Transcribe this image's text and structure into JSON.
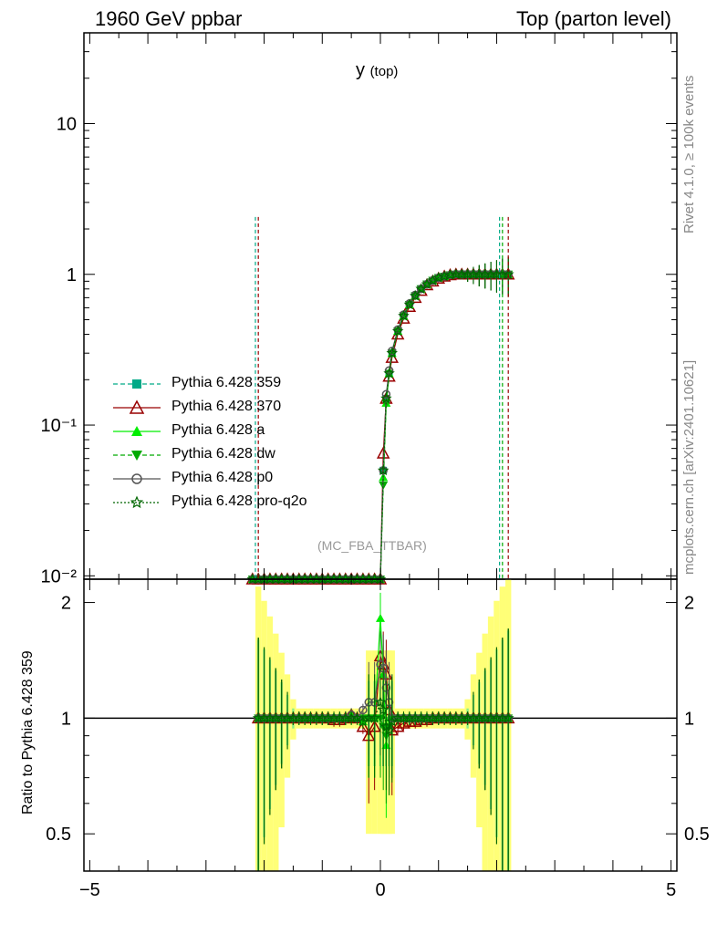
{
  "header": {
    "left": "1960 GeV ppbar",
    "right": "Top (parton level)"
  },
  "plot_title": {
    "main": "y",
    "sub": "(top)"
  },
  "watermark": "(MC_FBA_TTBAR)",
  "side_labels": {
    "rivet": "Rivet 4.1.0, ≥ 100k events",
    "mcplots": "mcplots.cern.ch [arXiv:2401.10621]"
  },
  "colors": {
    "pythia_359": "#00aa88",
    "pythia_370": "#990000",
    "pythia_a": "#00ee00",
    "pythia_dw": "#00aa00",
    "pythia_p0": "#555555",
    "pythia_pro_q2o": "#006600",
    "band_yellow": "#ffff77",
    "band_green": "#88ee88"
  },
  "legend": [
    {
      "label": "Pythia 6.428 359",
      "color": "#00aa88",
      "marker": "square",
      "dash": "5,3"
    },
    {
      "label": "Pythia 6.428 370",
      "color": "#990000",
      "marker": "triangle-open",
      "dash": ""
    },
    {
      "label": "Pythia 6.428 a",
      "color": "#00ee00",
      "marker": "triangle",
      "dash": ""
    },
    {
      "label": "Pythia 6.428 dw",
      "color": "#00aa00",
      "marker": "triangle-down",
      "dash": "5,3"
    },
    {
      "label": "Pythia 6.428 p0",
      "color": "#555555",
      "marker": "circle-open",
      "dash": ""
    },
    {
      "label": "Pythia 6.428 pro-q2o",
      "color": "#006600",
      "marker": "star-open",
      "dash": "2,2"
    }
  ],
  "chart_data": [
    {
      "type": "line",
      "title": "y (top)",
      "xlabel": "",
      "ylabel": "",
      "xlim": [
        -5.1,
        5.1
      ],
      "ylim": [
        0.0095,
        40
      ],
      "yscale": "log",
      "x_ticks": [
        -5,
        0,
        5
      ],
      "x_tick_labels": [
        "−5",
        "0",
        "5"
      ],
      "y_ticks": [
        0.01,
        0.1,
        1,
        10
      ],
      "y_tick_labels": [
        "10⁻²",
        "10⁻¹",
        "1",
        "10"
      ],
      "x": [
        -2.2,
        -2.1,
        -2.0,
        -1.9,
        -1.8,
        -1.7,
        -1.6,
        -1.5,
        -1.4,
        -1.3,
        -1.2,
        -1.1,
        -1.0,
        -0.9,
        -0.8,
        -0.7,
        -0.6,
        -0.5,
        -0.4,
        -0.3,
        -0.2,
        -0.1,
        0.0,
        0.05,
        0.1,
        0.15,
        0.2,
        0.3,
        0.4,
        0.5,
        0.6,
        0.7,
        0.8,
        0.9,
        1.0,
        1.1,
        1.2,
        1.3,
        1.4,
        1.5,
        1.6,
        1.7,
        1.8,
        1.9,
        2.0,
        2.1,
        2.2
      ],
      "series": [
        {
          "name": "Pythia 6.428 359",
          "values": [
            0.0095,
            0.0095,
            0.0095,
            0.0095,
            0.0095,
            0.0095,
            0.0095,
            0.0095,
            0.0095,
            0.0095,
            0.0095,
            0.0095,
            0.0095,
            0.0095,
            0.0095,
            0.0095,
            0.0095,
            0.0095,
            0.0095,
            0.0095,
            0.0095,
            0.0095,
            0.0095,
            0.05,
            0.15,
            0.22,
            0.3,
            0.42,
            0.53,
            0.63,
            0.72,
            0.8,
            0.86,
            0.91,
            0.95,
            0.97,
            0.99,
            1.0,
            1.0,
            1.0,
            1.0,
            1.0,
            1.0,
            1.0,
            1.0,
            1.0,
            1.0
          ]
        },
        {
          "name": "Pythia 6.428 370",
          "values": [
            0.0095,
            0.0095,
            0.0095,
            0.0095,
            0.0095,
            0.0095,
            0.0095,
            0.0095,
            0.0095,
            0.0095,
            0.0095,
            0.0095,
            0.0095,
            0.0095,
            0.0095,
            0.0095,
            0.0095,
            0.0095,
            0.0095,
            0.0095,
            0.0095,
            0.0095,
            0.0095,
            0.065,
            0.15,
            0.21,
            0.28,
            0.4,
            0.51,
            0.61,
            0.7,
            0.78,
            0.85,
            0.9,
            0.94,
            0.97,
            0.99,
            1.0,
            1.0,
            1.0,
            1.0,
            1.0,
            1.0,
            1.0,
            1.0,
            1.0,
            1.0
          ]
        },
        {
          "name": "Pythia 6.428 a",
          "values": [
            0.0095,
            0.0095,
            0.0095,
            0.0095,
            0.0095,
            0.0095,
            0.0095,
            0.0095,
            0.0095,
            0.0095,
            0.0095,
            0.0095,
            0.0095,
            0.0095,
            0.0095,
            0.0095,
            0.0095,
            0.0095,
            0.0095,
            0.0095,
            0.0095,
            0.0095,
            0.0095,
            0.045,
            0.14,
            0.22,
            0.3,
            0.42,
            0.53,
            0.63,
            0.72,
            0.8,
            0.86,
            0.91,
            0.95,
            0.97,
            0.99,
            1.0,
            1.0,
            1.0,
            1.0,
            1.0,
            1.0,
            1.0,
            1.0,
            1.0,
            1.0
          ]
        },
        {
          "name": "Pythia 6.428 dw",
          "values": [
            0.0095,
            0.0095,
            0.0095,
            0.0095,
            0.0095,
            0.0095,
            0.0095,
            0.0095,
            0.0095,
            0.0095,
            0.0095,
            0.0095,
            0.0095,
            0.0095,
            0.0095,
            0.0095,
            0.0095,
            0.0095,
            0.0095,
            0.0095,
            0.0095,
            0.0095,
            0.0095,
            0.04,
            0.14,
            0.22,
            0.3,
            0.42,
            0.53,
            0.63,
            0.72,
            0.8,
            0.86,
            0.91,
            0.95,
            0.97,
            0.99,
            1.0,
            1.0,
            1.0,
            1.0,
            1.0,
            1.0,
            1.0,
            1.0,
            1.0,
            1.0
          ]
        },
        {
          "name": "Pythia 6.428 p0",
          "values": [
            0.0095,
            0.0095,
            0.0095,
            0.0095,
            0.0095,
            0.0095,
            0.0095,
            0.0095,
            0.0095,
            0.0095,
            0.0095,
            0.0095,
            0.0095,
            0.0095,
            0.0095,
            0.0095,
            0.0095,
            0.0095,
            0.0095,
            0.0095,
            0.0095,
            0.0095,
            0.0095,
            0.05,
            0.16,
            0.23,
            0.31,
            0.43,
            0.54,
            0.64,
            0.73,
            0.8,
            0.86,
            0.91,
            0.95,
            0.97,
            0.99,
            1.0,
            1.0,
            1.0,
            1.0,
            1.0,
            1.0,
            1.0,
            1.0,
            1.0,
            1.0
          ]
        },
        {
          "name": "Pythia 6.428 pro-q2o",
          "values": [
            0.0095,
            0.0095,
            0.0095,
            0.0095,
            0.0095,
            0.0095,
            0.0095,
            0.0095,
            0.0095,
            0.0095,
            0.0095,
            0.0095,
            0.0095,
            0.0095,
            0.0095,
            0.0095,
            0.0095,
            0.0095,
            0.0095,
            0.0095,
            0.0095,
            0.0095,
            0.0095,
            0.05,
            0.15,
            0.22,
            0.3,
            0.42,
            0.53,
            0.63,
            0.72,
            0.8,
            0.86,
            0.91,
            0.95,
            0.97,
            0.99,
            1.0,
            1.0,
            1.0,
            1.0,
            1.0,
            1.0,
            1.0,
            1.0,
            1.0,
            1.0
          ]
        }
      ],
      "grid": false,
      "legend_position": "middle-left"
    },
    {
      "type": "line",
      "title": "",
      "xlabel": "",
      "ylabel": "Ratio to Pythia 6.428 359",
      "xlim": [
        -5.1,
        5.1
      ],
      "ylim": [
        0.4,
        2.3
      ],
      "y_ticks": [
        0.5,
        1,
        2
      ],
      "y_tick_labels": [
        "0.5",
        "1",
        "2"
      ],
      "x_ticks": [
        -5,
        0,
        5
      ],
      "x_tick_labels": [
        "−5",
        "0",
        "5"
      ],
      "reference": 1,
      "x": [
        -2.1,
        -2.0,
        -1.9,
        -1.8,
        -1.7,
        -1.6,
        -1.5,
        -1.4,
        -1.3,
        -1.2,
        -1.1,
        -1.0,
        -0.9,
        -0.8,
        -0.7,
        -0.6,
        -0.5,
        -0.4,
        -0.3,
        -0.2,
        -0.1,
        0.0,
        0.05,
        0.1,
        0.15,
        0.2,
        0.3,
        0.4,
        0.5,
        0.6,
        0.7,
        0.8,
        0.9,
        1.0,
        1.1,
        1.2,
        1.3,
        1.4,
        1.5,
        1.6,
        1.7,
        1.8,
        1.9,
        2.0,
        2.1,
        2.2
      ],
      "series": [
        {
          "name": "Pythia 6.428 370",
          "values": [
            1.0,
            1.0,
            1.0,
            1.0,
            1.0,
            1.0,
            1.0,
            1.0,
            1.0,
            1.0,
            1.0,
            1.0,
            1.0,
            0.99,
            0.99,
            1.0,
            1.02,
            1.0,
            0.95,
            0.9,
            0.95,
            1.45,
            1.38,
            1.3,
            1.05,
            0.93,
            0.95,
            0.97,
            0.98,
            0.98,
            0.99,
            0.99,
            1.0,
            1.0,
            1.0,
            1.0,
            1.0,
            1.0,
            1.0,
            1.0,
            1.0,
            1.0,
            1.0,
            1.0,
            1.0,
            1.0
          ]
        },
        {
          "name": "Pythia 6.428 a",
          "values": [
            1.0,
            1.0,
            1.0,
            1.0,
            1.0,
            1.0,
            1.0,
            1.0,
            1.0,
            1.0,
            1.0,
            1.0,
            1.0,
            1.0,
            1.0,
            1.0,
            1.02,
            1.0,
            0.98,
            1.0,
            1.0,
            1.82,
            1.3,
            0.85,
            1.0,
            1.0,
            1.0,
            1.0,
            1.0,
            1.0,
            1.0,
            1.0,
            1.0,
            1.0,
            1.0,
            1.0,
            1.0,
            1.0,
            1.0,
            1.0,
            1.0,
            1.0,
            1.0,
            1.0,
            1.0,
            1.0
          ]
        },
        {
          "name": "Pythia 6.428 dw",
          "values": [
            1.0,
            1.0,
            1.0,
            1.0,
            1.0,
            1.0,
            1.0,
            1.0,
            1.0,
            1.0,
            1.0,
            1.0,
            1.0,
            1.0,
            1.0,
            1.0,
            1.0,
            1.0,
            1.0,
            1.0,
            1.0,
            1.0,
            0.95,
            0.9,
            0.95,
            1.0,
            1.0,
            1.0,
            1.0,
            1.0,
            1.0,
            1.0,
            1.0,
            1.0,
            1.0,
            1.0,
            1.0,
            1.0,
            1.0,
            1.0,
            1.0,
            1.0,
            1.0,
            1.0,
            1.0,
            1.0
          ]
        },
        {
          "name": "Pythia 6.428 p0",
          "values": [
            1.0,
            1.0,
            1.0,
            1.0,
            1.0,
            1.0,
            1.0,
            1.0,
            1.0,
            1.0,
            1.0,
            1.0,
            1.0,
            1.0,
            1.0,
            1.0,
            1.02,
            1.0,
            1.05,
            1.1,
            1.1,
            1.38,
            1.35,
            1.2,
            1.1,
            1.0,
            1.0,
            1.0,
            1.0,
            1.0,
            1.0,
            1.0,
            1.0,
            1.0,
            1.0,
            1.0,
            1.0,
            1.0,
            1.0,
            1.0,
            1.0,
            1.0,
            1.0,
            1.0,
            1.0,
            1.0
          ]
        },
        {
          "name": "Pythia 6.428 pro-q2o",
          "values": [
            1.0,
            1.0,
            1.0,
            1.0,
            1.0,
            1.0,
            1.0,
            1.0,
            1.0,
            1.0,
            1.0,
            1.0,
            1.0,
            1.0,
            1.0,
            1.0,
            1.0,
            1.0,
            0.98,
            1.0,
            1.0,
            1.1,
            1.05,
            0.95,
            0.93,
            0.98,
            1.0,
            1.0,
            1.0,
            1.0,
            1.0,
            1.0,
            1.0,
            1.0,
            1.0,
            1.0,
            1.0,
            1.0,
            1.0,
            1.0,
            1.0,
            1.0,
            1.0,
            1.0,
            1.0,
            1.0
          ]
        }
      ],
      "grid": false
    }
  ]
}
